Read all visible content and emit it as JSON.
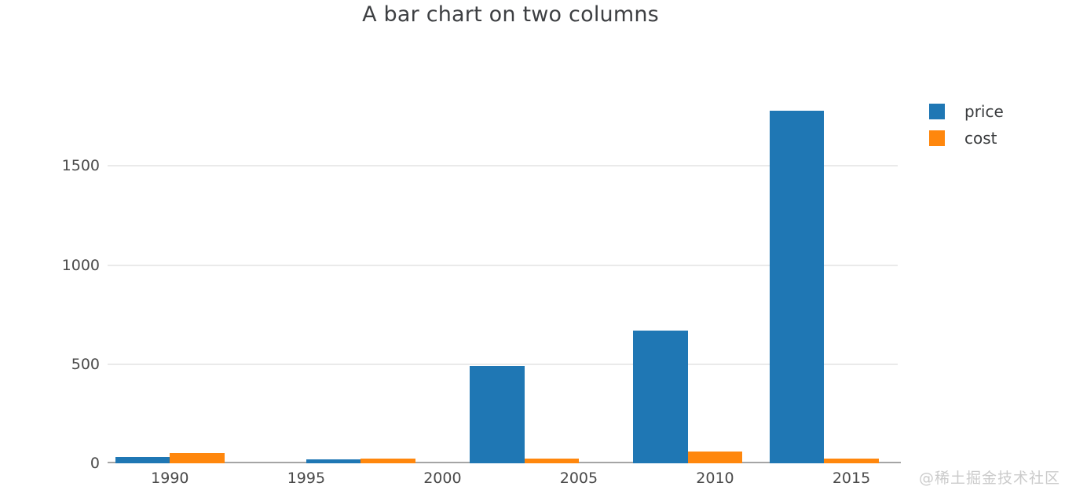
{
  "chart_data": {
    "type": "bar",
    "title": "A bar chart on two columns",
    "x": [
      1990,
      1997,
      2003,
      2009,
      2014
    ],
    "series": [
      {
        "name": "price",
        "color": "#1f77b4",
        "values": [
          30,
          20,
          490,
          670,
          1780
        ]
      },
      {
        "name": "cost",
        "color": "#ff870d",
        "values": [
          50,
          25,
          25,
          60,
          25
        ]
      }
    ],
    "bar_width_x": 2,
    "x_ticks": [
      1990,
      1995,
      2000,
      2005,
      2010,
      2015
    ],
    "y_ticks": [
      0,
      500,
      1000,
      1500
    ],
    "x_range": [
      1987.8,
      2016.7
    ],
    "y_range": [
      0,
      2100
    ],
    "grid": "horizontal-only",
    "legend_position": "top-right-outside"
  },
  "watermark": {
    "text": "@稀土掘金技术社区"
  }
}
